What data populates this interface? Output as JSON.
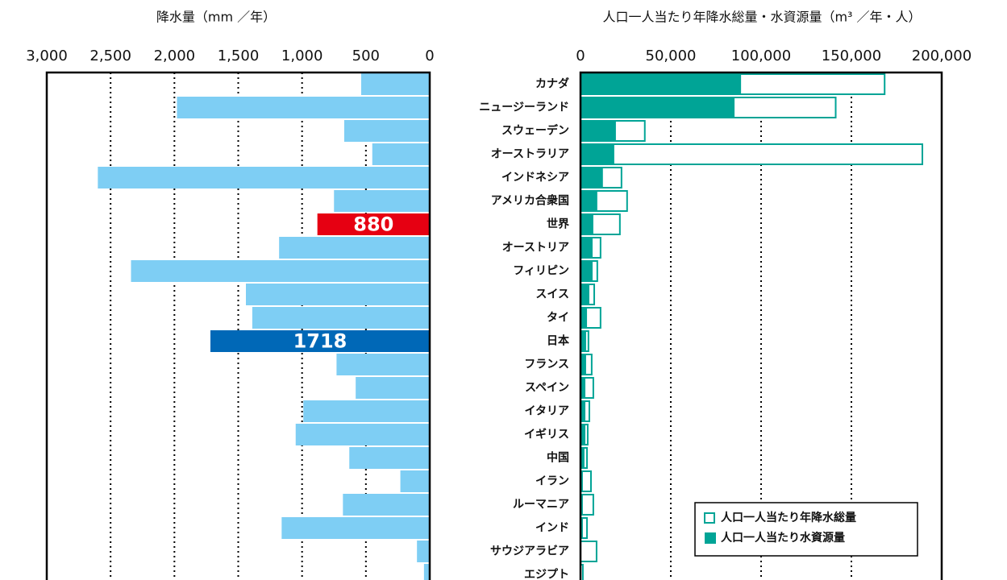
{
  "chart_data": [
    {
      "type": "hbar",
      "title": "降水量（mm ／年）",
      "values": [
        537,
        1980,
        670,
        450,
        2600,
        750,
        880,
        1180,
        2340,
        1440,
        1390,
        1718,
        730,
        580,
        990,
        1050,
        630,
        230,
        680,
        1160,
        100,
        45
      ],
      "value_labels": [
        null,
        null,
        null,
        null,
        null,
        null,
        "880",
        null,
        null,
        null,
        null,
        "1718",
        null,
        null,
        null,
        null,
        null,
        null,
        null,
        null,
        null,
        null
      ],
      "colors": [
        "#7ecef4",
        "#7ecef4",
        "#7ecef4",
        "#7ecef4",
        "#7ecef4",
        "#7ecef4",
        "#e60012",
        "#7ecef4",
        "#7ecef4",
        "#7ecef4",
        "#7ecef4",
        "#0068b7",
        "#7ecef4",
        "#7ecef4",
        "#7ecef4",
        "#7ecef4",
        "#7ecef4",
        "#7ecef4",
        "#7ecef4",
        "#7ecef4",
        "#7ecef4",
        "#7ecef4"
      ],
      "xlim": [
        3000,
        0
      ],
      "xticks": [
        {
          "value": 3000,
          "label": "3,000"
        },
        {
          "value": 2500,
          "label": "2,500"
        },
        {
          "value": 2000,
          "label": "2,000"
        },
        {
          "value": 1500,
          "label": "1,500"
        },
        {
          "value": 1000,
          "label": "1,000"
        },
        500,
        0
      ],
      "grid": true
    },
    {
      "type": "overlap-hbar",
      "title": "人口一人当たり年降水総量・水資源量（m³ ／年・人）",
      "categories": [
        "カナダ",
        "ニュージーランド",
        "スウェーデン",
        "オーストラリア",
        "インドネシア",
        "アメリカ合衆国",
        "世界",
        "オーストリア",
        "フィリピン",
        "スイス",
        "タイ",
        "日本",
        "フランス",
        "スペイン",
        "イタリア",
        "イギリス",
        "中国",
        "イラン",
        "ルーマニア",
        "インド",
        "サウジアラビア",
        "エジプト"
      ],
      "series": [
        {
          "name": "人口一人当たり年降水総量",
          "color": "#00a496",
          "style": "outline",
          "values": [
            168400,
            141300,
            35600,
            189300,
            22700,
            25800,
            21800,
            11100,
            9300,
            7600,
            11100,
            4400,
            6200,
            7100,
            4900,
            4000,
            3600,
            5800,
            7100,
            3600,
            8900,
            1300
          ]
        },
        {
          "name": "人口一人当たり水資源量",
          "color": "#00a496",
          "style": "filled",
          "values": [
            88900,
            85300,
            19600,
            18700,
            12400,
            9300,
            7100,
            6700,
            6700,
            4900,
            3600,
            3100,
            3100,
            2700,
            2700,
            2700,
            2200,
            1300,
            1300,
            1300,
            400,
            400
          ]
        }
      ],
      "xlim": [
        0,
        200000
      ],
      "xticks": [
        0,
        {
          "value": 50000,
          "label": "50,000"
        },
        {
          "value": 100000,
          "label": "100,000"
        },
        {
          "value": 150000,
          "label": "150,000"
        },
        {
          "value": 200000,
          "label": "200,000"
        }
      ],
      "grid": true,
      "legend": "lower right"
    }
  ]
}
